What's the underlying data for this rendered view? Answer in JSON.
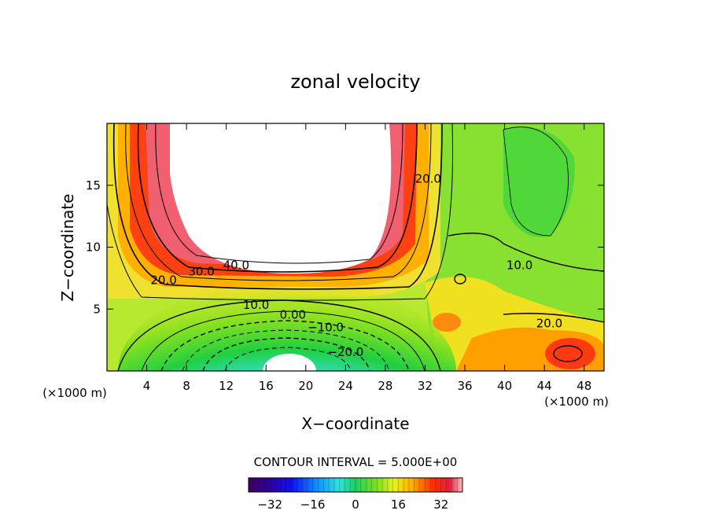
{
  "chart_data": {
    "type": "heatmap",
    "title": "zonal velocity",
    "xlabel": "X−coordinate",
    "ylabel": "Z−coordinate",
    "x_unit_left": "(×1000 m)",
    "x_unit_right": "(×1000 m)",
    "xlim": [
      0,
      50
    ],
    "ylim": [
      0,
      20
    ],
    "x_ticks": [
      4,
      8,
      12,
      16,
      20,
      24,
      28,
      32,
      36,
      40,
      44,
      48
    ],
    "x_tick_labels": [
      "4",
      "8",
      "12",
      "16",
      "20",
      "24",
      "28",
      "32",
      "36",
      "40",
      "44",
      "48"
    ],
    "y_ticks": [
      5,
      10,
      15
    ],
    "y_tick_labels": [
      "5",
      "10",
      "15"
    ],
    "contour_interval_label": "CONTOUR INTERVAL = 5.000E+00",
    "contour_labels": [
      {
        "text": "40.0",
        "x": 13.0,
        "y": 8.5
      },
      {
        "text": "30.0",
        "x": 9.5,
        "y": 8.0
      },
      {
        "text": "20.0",
        "x": 5.7,
        "y": 7.3
      },
      {
        "text": "10.0",
        "x": 15.0,
        "y": 5.3
      },
      {
        "text": "0.00",
        "x": 18.7,
        "y": 4.5
      },
      {
        "text": "−10.0",
        "x": 22.0,
        "y": 3.5
      },
      {
        "text": "−20.0",
        "x": 24.0,
        "y": 1.5
      },
      {
        "text": "20.0",
        "x": 32.3,
        "y": 15.5
      },
      {
        "text": "10.0",
        "x": 41.5,
        "y": 8.5
      },
      {
        "text": "20.0",
        "x": 44.5,
        "y": 3.8
      }
    ],
    "colorbar": {
      "min": -40,
      "max": 40,
      "ticks": [
        -32,
        -16,
        0,
        16,
        32
      ],
      "tick_labels": [
        "−32",
        "−16",
        "0",
        "16",
        "32"
      ]
    },
    "colors": {
      "axis": "#000000",
      "background": "#ffffff"
    }
  }
}
